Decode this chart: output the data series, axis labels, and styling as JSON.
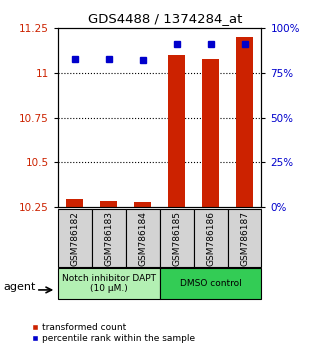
{
  "title": "GDS4488 / 1374284_at",
  "samples": [
    "GSM786182",
    "GSM786183",
    "GSM786184",
    "GSM786185",
    "GSM786186",
    "GSM786187"
  ],
  "red_values": [
    10.295,
    10.285,
    10.28,
    11.1,
    11.08,
    11.2
  ],
  "blue_values_pct": [
    83,
    83,
    82,
    91,
    91,
    91
  ],
  "ylim_left": [
    10.25,
    11.25
  ],
  "ylim_right": [
    0,
    100
  ],
  "yticks_left": [
    10.25,
    10.5,
    10.75,
    11.0,
    11.25
  ],
  "ytick_labels_left": [
    "10.25",
    "10.5",
    "10.75",
    "11",
    "11.25"
  ],
  "yticks_right": [
    0,
    25,
    50,
    75,
    100
  ],
  "ytick_labels_right": [
    "0%",
    "25%",
    "50%",
    "75%",
    "100%"
  ],
  "bar_bottom": 10.25,
  "groups": [
    {
      "label": "Notch inhibitor DAPT\n(10 μM.)",
      "samples": [
        0,
        1,
        2
      ],
      "color": "#b3f0b3"
    },
    {
      "label": "DMSO control",
      "samples": [
        3,
        4,
        5
      ],
      "color": "#33cc55"
    }
  ],
  "agent_label": "agent",
  "legend": [
    "transformed count",
    "percentile rank within the sample"
  ],
  "red_color": "#cc2200",
  "blue_color": "#0000cc",
  "bar_width": 0.5,
  "tick_label_color_left": "#cc2200",
  "tick_label_color_right": "#0000cc"
}
